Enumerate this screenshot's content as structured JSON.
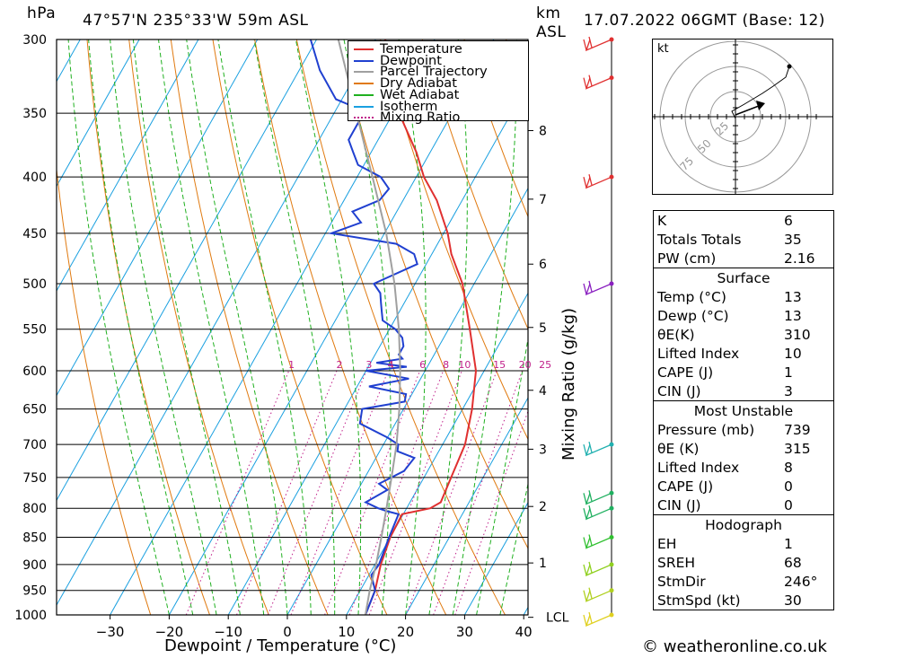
{
  "header": {
    "pressure_unit": "hPa",
    "location": "47°57'N  235°33'W  59m  ASL",
    "km_unit": "km",
    "asl": "ASL",
    "datetime": "17.07.2022  06GMT  (Base: 12)"
  },
  "credit": "© weatheronline.co.uk",
  "chart_data": {
    "type": "line",
    "subtype": "skew-T log-P",
    "xlabel": "Dewpoint / Temperature (°C)",
    "ylabel_right": "Mixing Ratio (g/kg)",
    "pressure_levels": [
      300,
      350,
      400,
      450,
      500,
      550,
      600,
      650,
      700,
      750,
      800,
      850,
      900,
      950,
      1000
    ],
    "pressure_labels": [
      "300",
      "350",
      "400",
      "450",
      "500",
      "550",
      "600",
      "650",
      "700",
      "750",
      "800",
      "850",
      "900",
      "950",
      "1000"
    ],
    "temp_ticks": [
      -30,
      -20,
      -10,
      0,
      10,
      20,
      30,
      40
    ],
    "temp_tick_labels": [
      "−30",
      "−20",
      "−10",
      "0",
      "10",
      "20",
      "30",
      "40"
    ],
    "km_ticks": [
      {
        "label": "8",
        "p": 363
      },
      {
        "label": "7",
        "p": 419
      },
      {
        "label": "6",
        "p": 480
      },
      {
        "label": "5",
        "p": 548
      },
      {
        "label": "4",
        "p": 625
      },
      {
        "label": "3",
        "p": 707
      },
      {
        "label": "2",
        "p": 797
      },
      {
        "label": "1",
        "p": 897
      },
      {
        "label": "LCL",
        "p": 1005
      }
    ],
    "mixing_ratio_labels": [
      "1",
      "2",
      "3",
      "4",
      "6",
      "8",
      "10",
      "15",
      "20",
      "25"
    ],
    "mixing_ratio_values": [
      1,
      2,
      3,
      4,
      6,
      8,
      10,
      15,
      20,
      25
    ],
    "legend": [
      {
        "name": "Temperature",
        "color": "#e03030",
        "style": "solid"
      },
      {
        "name": "Dewpoint",
        "color": "#2040d0",
        "style": "solid"
      },
      {
        "name": "Parcel Trajectory",
        "color": "#a0a0a0",
        "style": "solid"
      },
      {
        "name": "Dry Adiabat",
        "color": "#e07a10",
        "style": "solid"
      },
      {
        "name": "Wet Adiabat",
        "color": "#20b020",
        "style": "solid"
      },
      {
        "name": "Isotherm",
        "color": "#1aa0e0",
        "style": "solid"
      },
      {
        "name": "Mixing Ratio",
        "color": "#c0208a",
        "style": "dotted"
      }
    ],
    "series": [
      {
        "name": "Temperature",
        "points": [
          [
            1000,
            13.2
          ],
          [
            950,
            12.5
          ],
          [
            900,
            11
          ],
          [
            850,
            10
          ],
          [
            810,
            9.8
          ],
          [
            800,
            14
          ],
          [
            790,
            15.2
          ],
          [
            750,
            14.6
          ],
          [
            700,
            13.8
          ],
          [
            650,
            11.6
          ],
          [
            600,
            8.6
          ],
          [
            550,
            3.6
          ],
          [
            500,
            -2
          ],
          [
            470,
            -6.7
          ],
          [
            450,
            -9.3
          ],
          [
            420,
            -14.3
          ],
          [
            400,
            -18.7
          ],
          [
            380,
            -22.3
          ],
          [
            350,
            -29
          ],
          [
            320,
            -33.3
          ],
          [
            300,
            -38.4
          ]
        ]
      },
      {
        "name": "Dewpoint",
        "points": [
          [
            1000,
            13.2
          ],
          [
            950,
            12.5
          ],
          [
            920,
            10.4
          ],
          [
            900,
            10.7
          ],
          [
            850,
            9.8
          ],
          [
            810,
            9.2
          ],
          [
            805,
            7
          ],
          [
            800,
            5.2
          ],
          [
            790,
            2.5
          ],
          [
            770,
            5
          ],
          [
            760,
            3
          ],
          [
            740,
            6
          ],
          [
            720,
            6.5
          ],
          [
            710,
            3
          ],
          [
            700,
            2.5
          ],
          [
            690,
            0
          ],
          [
            670,
            -6
          ],
          [
            650,
            -7
          ],
          [
            640,
            -0.5
          ],
          [
            630,
            -1
          ],
          [
            620,
            -8
          ],
          [
            610,
            -2
          ],
          [
            600,
            -10
          ],
          [
            595,
            -3.5
          ],
          [
            590,
            -9
          ],
          [
            585,
            -5
          ],
          [
            580,
            -6
          ],
          [
            570,
            -6
          ],
          [
            560,
            -7
          ],
          [
            550,
            -9
          ],
          [
            540,
            -12
          ],
          [
            530,
            -13
          ],
          [
            520,
            -14
          ],
          [
            510,
            -15
          ],
          [
            500,
            -17
          ],
          [
            480,
            -11.5
          ],
          [
            470,
            -13
          ],
          [
            460,
            -17
          ],
          [
            450,
            -29
          ],
          [
            440,
            -25
          ],
          [
            430,
            -27.5
          ],
          [
            420,
            -24
          ],
          [
            410,
            -23.5
          ],
          [
            400,
            -26
          ],
          [
            390,
            -31
          ],
          [
            380,
            -33
          ],
          [
            370,
            -35
          ],
          [
            350,
            -35
          ],
          [
            345,
            -37.5
          ],
          [
            340,
            -41
          ],
          [
            320,
            -46.5
          ],
          [
            300,
            -51
          ]
        ]
      },
      {
        "name": "Parcel Trajectory",
        "points": [
          [
            1000,
            13.2
          ],
          [
            950,
            11.6
          ],
          [
            900,
            10.2
          ],
          [
            850,
            8.5
          ],
          [
            800,
            6.6
          ],
          [
            750,
            4.5
          ],
          [
            700,
            2.2
          ],
          [
            650,
            -0.7
          ],
          [
            600,
            -4.2
          ],
          [
            550,
            -8.4
          ],
          [
            500,
            -13.5
          ],
          [
            450,
            -19.7
          ],
          [
            400,
            -27.4
          ],
          [
            350,
            -36.2
          ],
          [
            300,
            -46.3
          ]
        ]
      }
    ]
  },
  "wind_barbs": [
    {
      "p": 300,
      "color": "#e03030"
    },
    {
      "p": 325,
      "color": "#e03030"
    },
    {
      "p": 400,
      "color": "#e03030"
    },
    {
      "p": 500,
      "color": "#8a20c0"
    },
    {
      "p": 700,
      "color": "#20b0b0"
    },
    {
      "p": 775,
      "color": "#20b060"
    },
    {
      "p": 800,
      "color": "#20b060"
    },
    {
      "p": 850,
      "color": "#30c030"
    },
    {
      "p": 900,
      "color": "#90d020"
    },
    {
      "p": 950,
      "color": "#b0d020"
    },
    {
      "p": 1000,
      "color": "#e0d020"
    }
  ],
  "hodograph": {
    "unit": "kt",
    "ring_labels": [
      "25",
      "50",
      "75"
    ]
  },
  "stats": {
    "indices": [
      {
        "k": "K",
        "v": "6"
      },
      {
        "k": "Totals Totals",
        "v": "35"
      },
      {
        "k": "PW (cm)",
        "v": "2.16"
      }
    ],
    "surface_title": "Surface",
    "surface": [
      {
        "k": "Temp (°C)",
        "v": "13"
      },
      {
        "k": "Dewp (°C)",
        "v": "13"
      },
      {
        "k": "θE(K)",
        "v": "310"
      },
      {
        "k": "Lifted Index",
        "v": "10"
      },
      {
        "k": "CAPE (J)",
        "v": "1"
      },
      {
        "k": "CIN (J)",
        "v": "3"
      }
    ],
    "mu_title": "Most Unstable",
    "mu": [
      {
        "k": "Pressure (mb)",
        "v": "739"
      },
      {
        "k": "θE (K)",
        "v": "315"
      },
      {
        "k": "Lifted Index",
        "v": "8"
      },
      {
        "k": "CAPE (J)",
        "v": "0"
      },
      {
        "k": "CIN (J)",
        "v": "0"
      }
    ],
    "hodo_title": "Hodograph",
    "hodo": [
      {
        "k": "EH",
        "v": "1"
      },
      {
        "k": "SREH",
        "v": "68"
      },
      {
        "k": "StmDir",
        "v": "246°"
      },
      {
        "k": "StmSpd (kt)",
        "v": "30"
      }
    ]
  }
}
